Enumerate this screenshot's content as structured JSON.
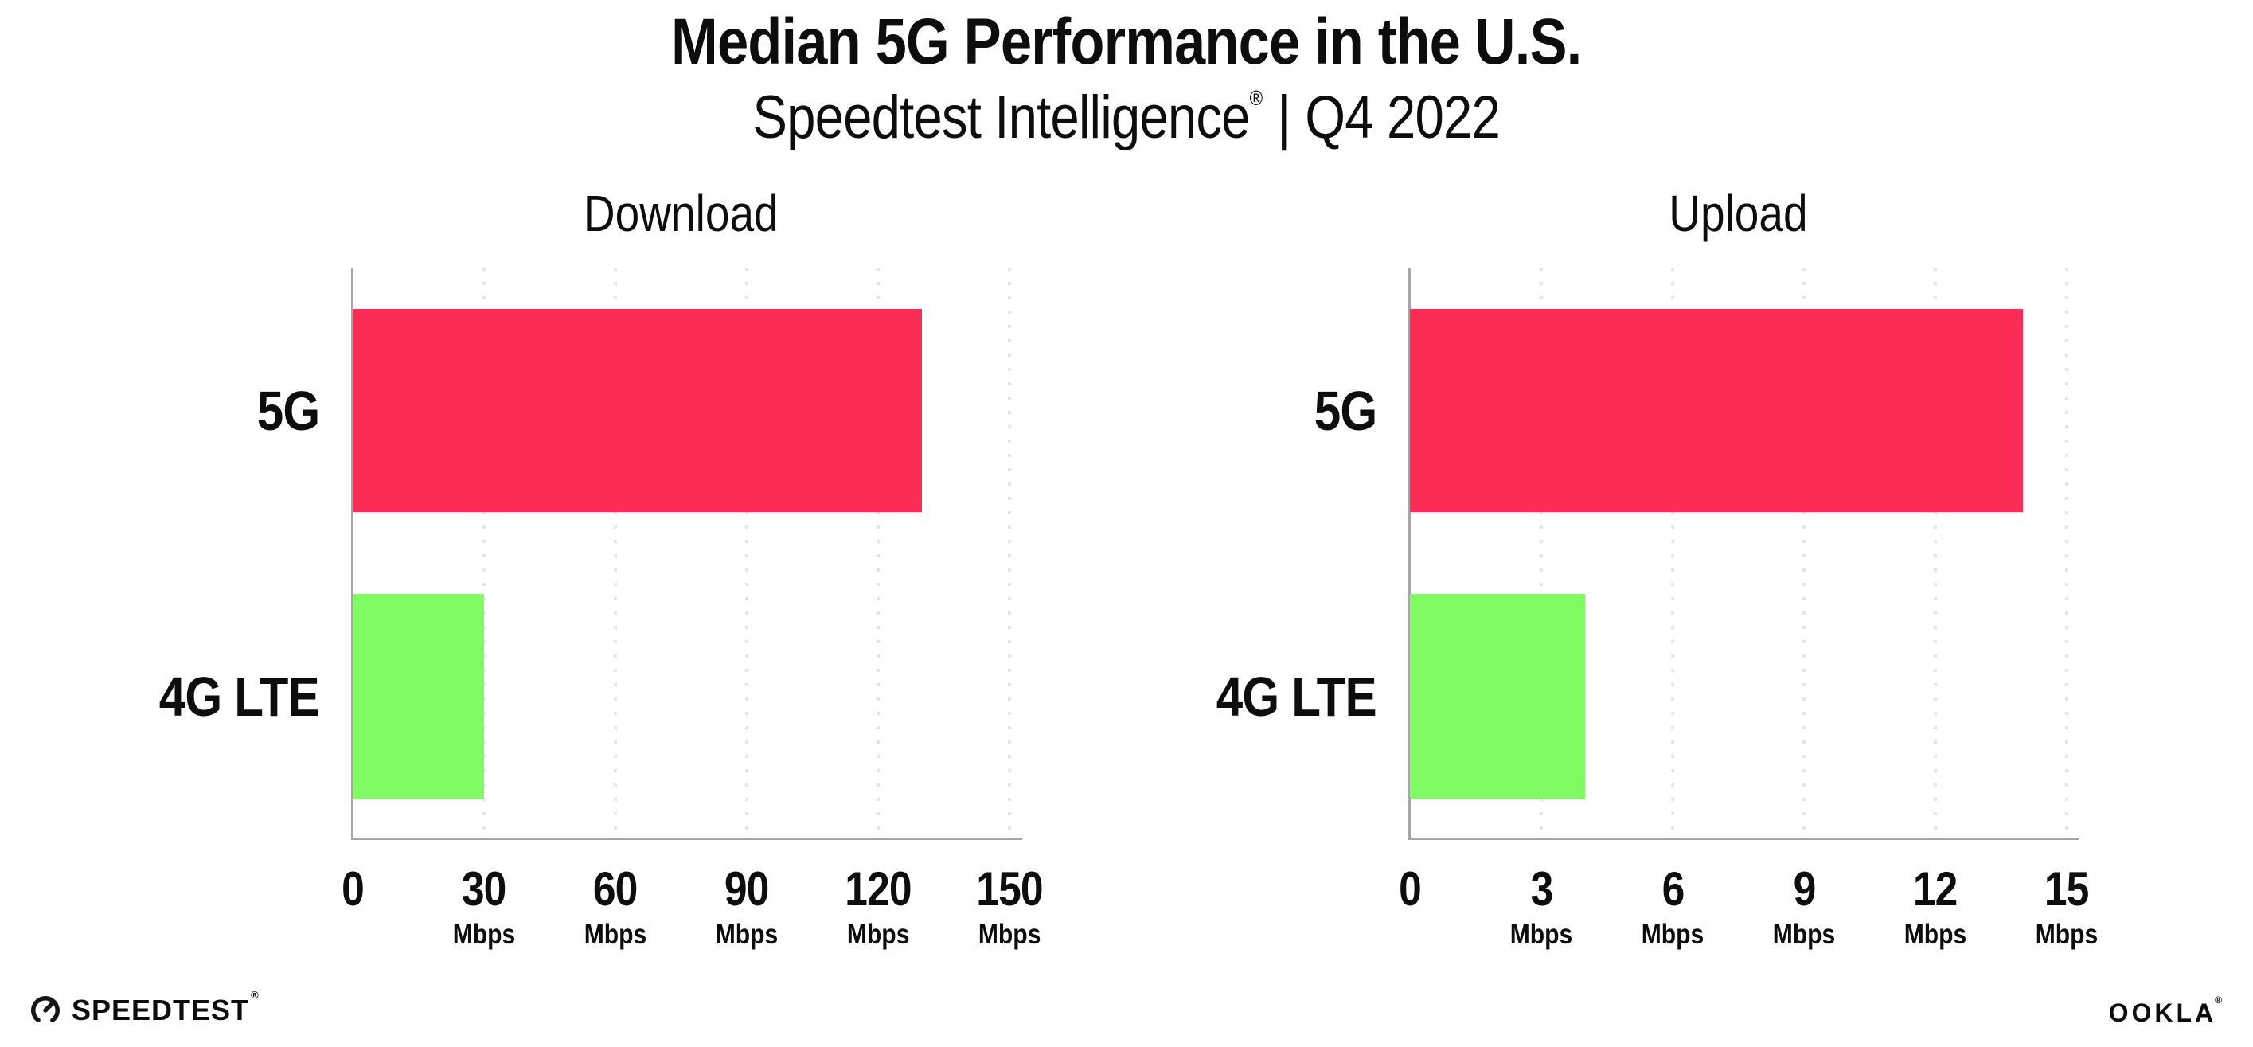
{
  "header": {
    "title": "Median 5G Performance in the U.S.",
    "subtitle_brand": "Speedtest Intelligence",
    "subtitle_reg": "®",
    "subtitle_sep": "|",
    "subtitle_period": "Q4 2022"
  },
  "footer": {
    "speedtest_label": "SPEEDTEST",
    "speedtest_reg": "®",
    "ookla_label": "OOKLA",
    "ookla_reg": "®"
  },
  "colors": {
    "bar_5g": "#fb2d57",
    "bar_4g_lte": "#80fb63",
    "axis": "#a6a6a6",
    "gridline": "#e4e4ed",
    "text": "#0d0d0d"
  },
  "chart_data": [
    {
      "type": "bar",
      "orientation": "horizontal",
      "title": "Download",
      "categories": [
        "5G",
        "4G LTE"
      ],
      "values": [
        130,
        30
      ],
      "unit": "Mbps",
      "xlabel": "",
      "ylabel": "",
      "xlim": [
        0,
        150
      ],
      "xticks": [
        0,
        30,
        60,
        90,
        120,
        150
      ],
      "bar_colors": [
        "#fb2d57",
        "#80fb63"
      ],
      "grid": "dotted vertical gridlines at each tick",
      "legend": "none"
    },
    {
      "type": "bar",
      "orientation": "horizontal",
      "title": "Upload",
      "categories": [
        "5G",
        "4G LTE"
      ],
      "values": [
        14,
        4
      ],
      "unit": "Mbps",
      "xlabel": "",
      "ylabel": "",
      "xlim": [
        0,
        15
      ],
      "xticks": [
        0,
        3,
        6,
        9,
        12,
        15
      ],
      "bar_colors": [
        "#fb2d57",
        "#80fb63"
      ],
      "grid": "dotted vertical gridlines at each tick",
      "legend": "none"
    }
  ]
}
